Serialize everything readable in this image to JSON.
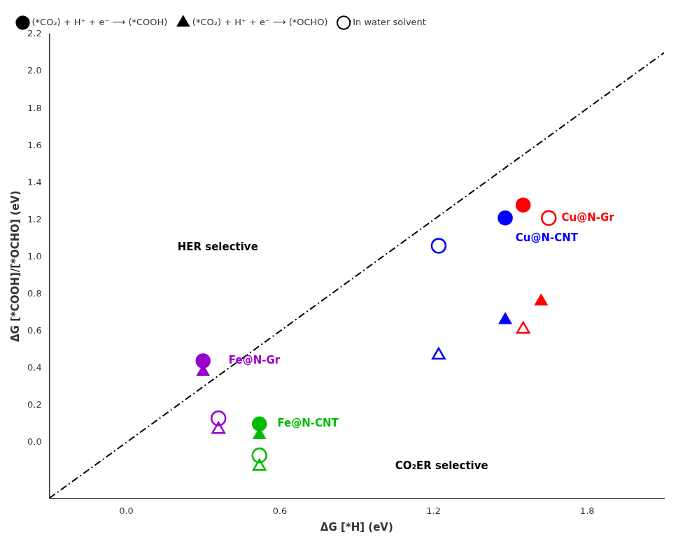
{
  "chart_data": {
    "type": "scatter",
    "xlabel": "ΔG [*H] (eV)",
    "ylabel": "ΔG [*COOH]/[*OCHO] (eV)",
    "xlim": [
      -0.3,
      2.1
    ],
    "ylim": [
      -0.3,
      2.2
    ],
    "xticks": [
      {
        "value": 0,
        "label": "0.0"
      },
      0.6,
      1.2,
      1.8
    ],
    "yticks": [
      {
        "value": 0,
        "label": "0.0"
      },
      0.2,
      0.4,
      0.6,
      0.8,
      {
        "value": 1,
        "label": "1.0"
      },
      1.2,
      1.4,
      1.6,
      1.8,
      {
        "value": 2,
        "label": "2.0"
      },
      2.2
    ],
    "grid": false,
    "legend": "upper left",
    "series": [
      {
        "type": "line",
        "line_style": "dashdot",
        "color": "#000000",
        "x": [
          -0.3,
          2.1
        ],
        "values": [
          -0.3,
          2.1
        ]
      },
      {
        "name": "(*CO₂) + H⁺ + e⁻ ⟶ (*COOH)",
        "type": "scatter",
        "marker": "circle",
        "colors": [
          "#FF0000",
          "#0000FF",
          "#9900CC",
          "#00BB00"
        ],
        "x": [
          1.55,
          1.48,
          0.3,
          0.52
        ],
        "values": [
          1.28,
          1.21,
          0.44,
          0.1
        ]
      },
      {
        "name": "(*CO₂) + H⁺ + e⁻ ⟶ (*OCHO)",
        "type": "scatter",
        "marker": "triangle",
        "colors": [
          "#FF0000",
          "#0000FF",
          "#9900CC",
          "#00BB00"
        ],
        "x": [
          1.62,
          1.48,
          0.3,
          0.52
        ],
        "values": [
          0.76,
          0.66,
          0.38,
          0.04
        ]
      },
      {
        "name": "In water solvent",
        "type": "scatter",
        "marker": "circle_open",
        "colors": [
          "#FF0000",
          "#0000FF",
          "#9900CC",
          "#00BB00"
        ],
        "x": [
          1.65,
          1.22,
          0.36,
          0.52
        ],
        "values": [
          1.21,
          1.06,
          0.13,
          -0.07
        ]
      },
      {
        "type": "scatter",
        "marker": "triangle_open",
        "colors": [
          "#FF0000",
          "#0000FF",
          "#9900CC",
          "#00BB00"
        ],
        "x": [
          1.55,
          1.22,
          0.36,
          0.52
        ],
        "values": [
          0.61,
          0.47,
          0.07,
          -0.13
        ]
      }
    ],
    "annotations": [
      {
        "text": "Cu@N-Gr",
        "x": 1.7,
        "y": 1.21,
        "color": "#FF0000"
      },
      {
        "text": "Cu@N-CNT",
        "x": 1.52,
        "y": 1.1,
        "color": "#0000FF"
      },
      {
        "text": "Fe@N-Gr",
        "x": 0.4,
        "y": 0.44,
        "color": "#9900CC"
      },
      {
        "text": "Fe@N-CNT",
        "x": 0.59,
        "y": 0.1,
        "color": "#00BB00"
      },
      {
        "text": "HER selective",
        "x": 0.2,
        "y": 1.05,
        "color": "#000000"
      },
      {
        "text": "CO₂ER selective",
        "x": 1.05,
        "y": -0.13,
        "color": "#000000"
      }
    ]
  }
}
